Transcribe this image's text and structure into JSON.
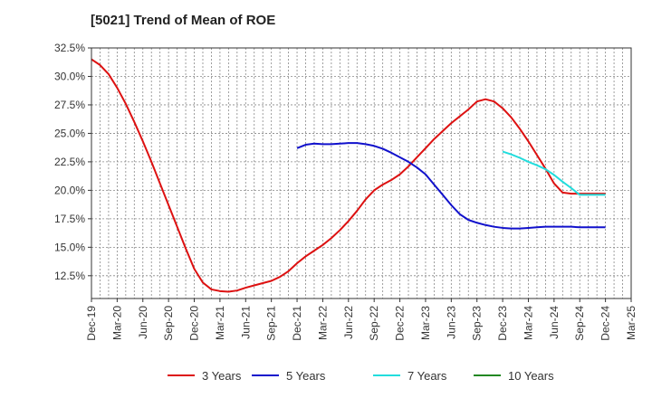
{
  "chart_data": {
    "type": "line",
    "title": "[5021]  Trend of Mean of ROE",
    "xlabel": "",
    "ylabel": "",
    "ylim": [
      10.5,
      32.5
    ],
    "y_ticks": [
      12.5,
      15.0,
      17.5,
      20.0,
      22.5,
      25.0,
      27.5,
      30.0,
      32.5
    ],
    "y_tick_labels": [
      "12.5%",
      "15.0%",
      "17.5%",
      "20.0%",
      "22.5%",
      "25.0%",
      "27.5%",
      "30.0%",
      "32.5%"
    ],
    "x_tick_labels": [
      "Dec-19",
      "Mar-20",
      "Jun-20",
      "Sep-20",
      "Dec-20",
      "Mar-21",
      "Jun-21",
      "Sep-21",
      "Dec-21",
      "Mar-22",
      "Jun-22",
      "Sep-22",
      "Dec-22",
      "Mar-23",
      "Jun-23",
      "Sep-23",
      "Dec-23",
      "Mar-24",
      "Jun-24",
      "Sep-24",
      "Dec-24",
      "Mar-25"
    ],
    "x_range_months": [
      0,
      63
    ],
    "grid": true,
    "legend_position": "bottom",
    "series": [
      {
        "name": "3 Years",
        "color": "#dd1111",
        "x": [
          0,
          1,
          2,
          3,
          4,
          5,
          6,
          7,
          8,
          9,
          10,
          11,
          12,
          13,
          14,
          15,
          16,
          17,
          18,
          19,
          20,
          21,
          22,
          23,
          24,
          25,
          26,
          27,
          28,
          29,
          30,
          31,
          32,
          33,
          34,
          35,
          36,
          37,
          38,
          39,
          40,
          41,
          42,
          43,
          44,
          45,
          46,
          47,
          48,
          49,
          50,
          51,
          52,
          53,
          54,
          55,
          56,
          57,
          58,
          59,
          60
        ],
        "y": [
          31.5,
          31.0,
          30.2,
          29.0,
          27.6,
          26.0,
          24.3,
          22.5,
          20.6,
          18.7,
          16.8,
          14.9,
          13.1,
          11.9,
          11.3,
          11.15,
          11.1,
          11.2,
          11.45,
          11.65,
          11.85,
          12.05,
          12.4,
          12.9,
          13.6,
          14.2,
          14.7,
          15.2,
          15.8,
          16.5,
          17.3,
          18.2,
          19.2,
          20.0,
          20.5,
          20.9,
          21.4,
          22.1,
          22.9,
          23.7,
          24.5,
          25.2,
          25.9,
          26.5,
          27.1,
          27.8,
          28.0,
          27.8,
          27.2,
          26.4,
          25.4,
          24.3,
          23.1,
          21.9,
          20.6,
          19.8,
          19.7,
          19.7,
          19.7,
          19.7,
          19.7
        ]
      },
      {
        "name": "5 Years",
        "color": "#1111cc",
        "x": [
          24,
          25,
          26,
          27,
          28,
          29,
          30,
          31,
          32,
          33,
          34,
          35,
          36,
          37,
          38,
          39,
          40,
          41,
          42,
          43,
          44,
          45,
          46,
          47,
          48,
          49,
          50,
          51,
          52,
          53,
          54,
          55,
          56,
          57,
          58,
          59,
          60
        ],
        "y": [
          23.7,
          24.0,
          24.1,
          24.05,
          24.05,
          24.1,
          24.15,
          24.15,
          24.05,
          23.9,
          23.65,
          23.3,
          22.9,
          22.5,
          22.0,
          21.4,
          20.5,
          19.6,
          18.7,
          17.9,
          17.4,
          17.15,
          16.95,
          16.8,
          16.7,
          16.65,
          16.65,
          16.7,
          16.75,
          16.8,
          16.8,
          16.8,
          16.8,
          16.75,
          16.75,
          16.75,
          16.75
        ]
      },
      {
        "name": "7 Years",
        "color": "#22dddd",
        "x": [
          48,
          49,
          50,
          51,
          52,
          53,
          54,
          55,
          56,
          57,
          58,
          59,
          60
        ],
        "y": [
          23.4,
          23.15,
          22.85,
          22.5,
          22.2,
          21.85,
          21.35,
          20.75,
          20.2,
          19.6,
          19.6,
          19.6,
          19.6
        ]
      },
      {
        "name": "10 Years",
        "color": "#228822",
        "x": [],
        "y": []
      }
    ]
  }
}
